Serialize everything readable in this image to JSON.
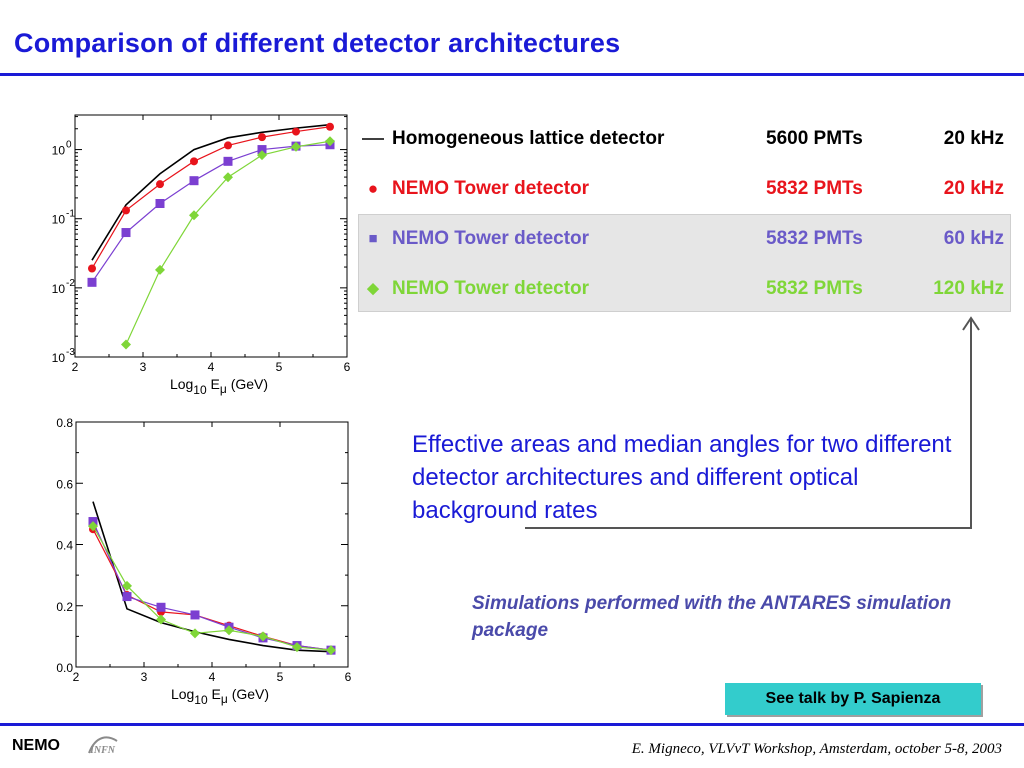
{
  "title": "Comparison of different detector architectures",
  "colors": {
    "accent": "#1a1ad6",
    "black": "#000000",
    "red": "#e8141c",
    "purple": "#7b3fd1",
    "green": "#7fd638"
  },
  "legend": [
    {
      "symbol": "line",
      "name": "Homogeneous lattice detector",
      "pmts": "5600 PMTs",
      "rate": "20 kHz",
      "color": "#000000"
    },
    {
      "symbol": "●",
      "name": "NEMO Tower detector",
      "pmts": "5832 PMTs",
      "rate": "20 kHz",
      "color": "#e8141c"
    },
    {
      "symbol": "■",
      "name": "NEMO Tower detector",
      "pmts": "5832 PMTs",
      "rate": "60 kHz",
      "color": "#6a5ac8"
    },
    {
      "symbol": "◆",
      "name": "NEMO Tower detector",
      "pmts": "5832 PMTs",
      "rate": "120 kHz",
      "color": "#7fd638"
    }
  ],
  "description": "Effective areas and median angles for two different detector architectures and different optical background rates",
  "simulation_note": "Simulations performed with the ANTARES simulation package",
  "talk_box": "See talk by P. Sapienza",
  "footer": {
    "project": "NEMO",
    "credit": "E. Migneco, VLVνT Workshop, Amsterdam, october 5-8, 2003"
  },
  "chart_data": [
    {
      "type": "line",
      "xlabel": "Log10 Eμ (GeV)",
      "xlim": [
        2,
        6
      ],
      "ylim": [
        -3,
        0.5
      ],
      "yscale": "log",
      "xticks": [
        "2",
        "3",
        "4",
        "5",
        "6"
      ],
      "yticks": [
        {
          "base": "10",
          "exp": "0",
          "value": 0
        },
        {
          "base": "10",
          "exp": "-1",
          "value": -1
        },
        {
          "base": "10",
          "exp": "-2",
          "value": -2
        },
        {
          "base": "10",
          "exp": "-3",
          "value": -3
        }
      ],
      "series": [
        {
          "marker": "none",
          "color": "#000000",
          "x": [
            2.25,
            2.75,
            3.25,
            3.75,
            4.25,
            4.75,
            5.25,
            5.75
          ],
          "y": [
            -1.6,
            -0.8,
            -0.35,
            0.0,
            0.17,
            0.25,
            0.31,
            0.36
          ]
        },
        {
          "marker": "circle",
          "color": "#e8141c",
          "x": [
            2.25,
            2.75,
            3.25,
            3.75,
            4.25,
            4.75,
            5.25,
            5.75
          ],
          "y": [
            -1.72,
            -0.88,
            -0.5,
            -0.17,
            0.06,
            0.18,
            0.26,
            0.33
          ]
        },
        {
          "marker": "square",
          "color": "#7b3fd1",
          "x": [
            2.25,
            2.75,
            3.25,
            3.75,
            4.25,
            4.75,
            5.25,
            5.75
          ],
          "y": [
            -1.92,
            -1.2,
            -0.78,
            -0.45,
            -0.17,
            0.0,
            0.05,
            0.07
          ]
        },
        {
          "marker": "diamond",
          "color": "#7fd638",
          "x": [
            2.75,
            3.25,
            3.75,
            4.25,
            4.75,
            5.25,
            5.75
          ],
          "y": [
            -2.82,
            -1.74,
            -0.95,
            -0.4,
            -0.08,
            0.04,
            0.12
          ]
        }
      ]
    },
    {
      "type": "line",
      "xlabel": "Log10 Eμ (GeV)",
      "xlim": [
        2,
        6
      ],
      "ylim": [
        0,
        0.8
      ],
      "xticks": [
        "2",
        "3",
        "4",
        "5",
        "6"
      ],
      "yticks": [
        "0.0",
        "0.2",
        "0.4",
        "0.6",
        "0.8"
      ],
      "series": [
        {
          "marker": "none",
          "color": "#000000",
          "x": [
            2.25,
            2.75,
            3.25,
            3.75,
            4.25,
            4.75,
            5.25,
            5.75
          ],
          "y": [
            0.54,
            0.19,
            0.145,
            0.115,
            0.09,
            0.07,
            0.055,
            0.05
          ]
        },
        {
          "marker": "circle",
          "color": "#e8141c",
          "x": [
            2.25,
            2.75,
            3.25,
            3.75,
            4.25,
            4.75,
            5.25,
            5.75
          ],
          "y": [
            0.45,
            0.235,
            0.18,
            0.17,
            0.135,
            0.1,
            0.07,
            0.055
          ]
        },
        {
          "marker": "square",
          "color": "#7b3fd1",
          "x": [
            2.25,
            2.75,
            3.25,
            3.75,
            4.25,
            4.75,
            5.25,
            5.75
          ],
          "y": [
            0.475,
            0.23,
            0.195,
            0.17,
            0.13,
            0.095,
            0.07,
            0.055
          ]
        },
        {
          "marker": "diamond",
          "color": "#7fd638",
          "x": [
            2.25,
            2.75,
            3.25,
            3.75,
            4.25,
            4.75,
            5.25,
            5.75
          ],
          "y": [
            0.46,
            0.265,
            0.155,
            0.11,
            0.12,
            0.1,
            0.065,
            0.055
          ]
        }
      ]
    }
  ]
}
